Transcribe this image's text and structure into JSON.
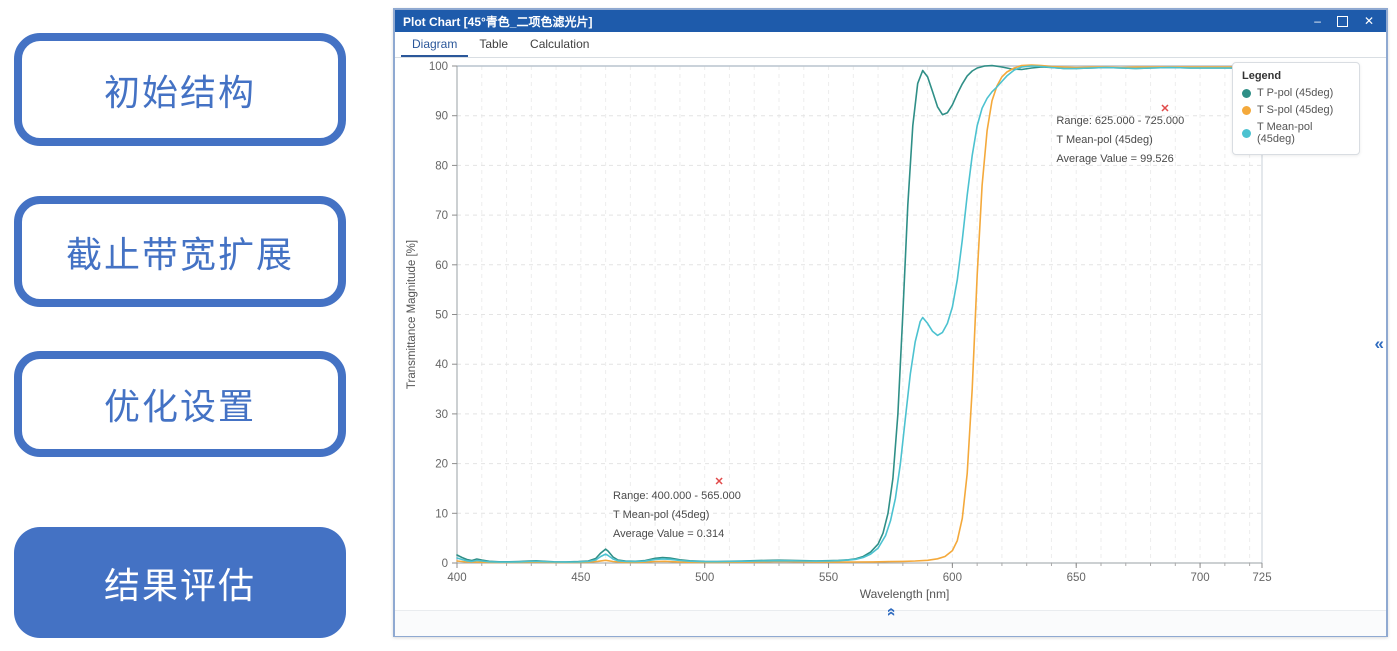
{
  "left_panel": {
    "accent_color": "#4472C4",
    "buttons": [
      {
        "label": "初始结构",
        "style": "outline"
      },
      {
        "label": "截止带宽扩展",
        "style": "outline"
      },
      {
        "label": "优化设置",
        "style": "outline"
      },
      {
        "label": "结果评估",
        "style": "filled"
      }
    ]
  },
  "window": {
    "title": "Plot Chart [45°青色_二项色滤光片]",
    "titlebar_color": "#1e5bab",
    "controls": {
      "minimize": "–",
      "close": "✕"
    },
    "tabs": [
      {
        "label": "Diagram",
        "active": true
      },
      {
        "label": "Table",
        "active": false
      },
      {
        "label": "Calculation",
        "active": false
      }
    ],
    "collapse_right_icon": "«",
    "collapse_up_icon": "«"
  },
  "chart_data": {
    "type": "line",
    "xlabel": "Wavelength [nm]",
    "ylabel": "Transmittance Magnitude [%]",
    "xlim": [
      400,
      725
    ],
    "ylim": [
      0,
      100
    ],
    "xticks": [
      400,
      450,
      500,
      550,
      600,
      650,
      700,
      725
    ],
    "yticks": [
      0,
      10,
      20,
      30,
      40,
      50,
      60,
      70,
      80,
      90,
      100
    ],
    "x_minor_step": 10,
    "grid": true,
    "legend": {
      "title": "Legend",
      "position": "top-right",
      "entries": [
        {
          "label": "T P-pol (45deg)",
          "color": "#2f8f87"
        },
        {
          "label": "T S-pol (45deg)",
          "color": "#f4a93b"
        },
        {
          "label": "T Mean-pol (45deg)",
          "color": "#4cc2d0"
        }
      ]
    },
    "series": [
      {
        "name": "T P-pol (45deg)",
        "color": "#2f8f87",
        "points": [
          [
            400,
            1.6
          ],
          [
            402,
            1.1
          ],
          [
            404,
            0.7
          ],
          [
            406,
            0.5
          ],
          [
            408,
            0.8
          ],
          [
            410,
            0.6
          ],
          [
            413,
            0.35
          ],
          [
            417,
            0.25
          ],
          [
            421,
            0.25
          ],
          [
            425,
            0.3
          ],
          [
            429,
            0.4
          ],
          [
            432,
            0.45
          ],
          [
            435,
            0.35
          ],
          [
            439,
            0.25
          ],
          [
            444,
            0.22
          ],
          [
            449,
            0.28
          ],
          [
            453,
            0.4
          ],
          [
            456,
            0.9
          ],
          [
            458,
            2.0
          ],
          [
            460,
            2.8
          ],
          [
            461,
            2.4
          ],
          [
            463,
            1.2
          ],
          [
            465,
            0.6
          ],
          [
            468,
            0.38
          ],
          [
            472,
            0.35
          ],
          [
            476,
            0.5
          ],
          [
            480,
            0.95
          ],
          [
            483,
            1.1
          ],
          [
            486,
            1.0
          ],
          [
            490,
            0.65
          ],
          [
            494,
            0.45
          ],
          [
            500,
            0.32
          ],
          [
            505,
            0.3
          ],
          [
            510,
            0.34
          ],
          [
            515,
            0.4
          ],
          [
            520,
            0.46
          ],
          [
            525,
            0.52
          ],
          [
            530,
            0.56
          ],
          [
            535,
            0.52
          ],
          [
            540,
            0.46
          ],
          [
            545,
            0.42
          ],
          [
            550,
            0.46
          ],
          [
            554,
            0.52
          ],
          [
            558,
            0.65
          ],
          [
            561,
            0.85
          ],
          [
            564,
            1.3
          ],
          [
            567,
            2.2
          ],
          [
            570,
            3.8
          ],
          [
            572,
            6
          ],
          [
            574,
            10
          ],
          [
            576,
            17
          ],
          [
            578,
            30
          ],
          [
            580,
            50
          ],
          [
            582,
            72
          ],
          [
            584,
            88
          ],
          [
            586,
            96.5
          ],
          [
            588,
            99.1
          ],
          [
            590,
            97.8
          ],
          [
            592,
            94.8
          ],
          [
            594,
            91.8
          ],
          [
            596,
            90.2
          ],
          [
            598,
            90.6
          ],
          [
            600,
            92.2
          ],
          [
            602,
            94.4
          ],
          [
            604,
            96.4
          ],
          [
            606,
            98
          ],
          [
            608,
            99
          ],
          [
            610,
            99.6
          ],
          [
            613,
            100
          ],
          [
            616,
            100.1
          ],
          [
            620,
            99.8
          ],
          [
            624,
            99.4
          ],
          [
            628,
            99.3
          ],
          [
            632,
            99.6
          ],
          [
            636,
            99.8
          ],
          [
            640,
            99.7
          ],
          [
            645,
            99.5
          ],
          [
            650,
            99.5
          ],
          [
            656,
            99.6
          ],
          [
            662,
            99.7
          ],
          [
            668,
            99.6
          ],
          [
            674,
            99.5
          ],
          [
            680,
            99.6
          ],
          [
            688,
            99.7
          ],
          [
            696,
            99.6
          ],
          [
            705,
            99.6
          ],
          [
            715,
            99.6
          ],
          [
            725,
            99.7
          ]
        ]
      },
      {
        "name": "T S-pol (45deg)",
        "color": "#f4a93b",
        "points": [
          [
            400,
            0.4
          ],
          [
            404,
            0.2
          ],
          [
            408,
            0.18
          ],
          [
            413,
            0.12
          ],
          [
            420,
            0.1
          ],
          [
            428,
            0.15
          ],
          [
            432,
            0.18
          ],
          [
            438,
            0.12
          ],
          [
            445,
            0.1
          ],
          [
            452,
            0.14
          ],
          [
            457,
            0.35
          ],
          [
            460,
            0.55
          ],
          [
            463,
            0.3
          ],
          [
            468,
            0.13
          ],
          [
            474,
            0.15
          ],
          [
            480,
            0.3
          ],
          [
            484,
            0.35
          ],
          [
            489,
            0.22
          ],
          [
            495,
            0.14
          ],
          [
            500,
            0.12
          ],
          [
            508,
            0.14
          ],
          [
            516,
            0.18
          ],
          [
            524,
            0.24
          ],
          [
            530,
            0.3
          ],
          [
            536,
            0.26
          ],
          [
            544,
            0.2
          ],
          [
            552,
            0.18
          ],
          [
            560,
            0.2
          ],
          [
            568,
            0.22
          ],
          [
            575,
            0.28
          ],
          [
            580,
            0.32
          ],
          [
            585,
            0.4
          ],
          [
            590,
            0.55
          ],
          [
            594,
            0.85
          ],
          [
            597,
            1.3
          ],
          [
            600,
            2.5
          ],
          [
            602,
            4.5
          ],
          [
            604,
            9
          ],
          [
            606,
            18
          ],
          [
            608,
            35
          ],
          [
            610,
            58
          ],
          [
            612,
            76
          ],
          [
            614,
            87
          ],
          [
            616,
            93
          ],
          [
            618,
            96
          ],
          [
            620,
            97.8
          ],
          [
            622,
            98.8
          ],
          [
            625,
            99.6
          ],
          [
            628,
            100.1
          ],
          [
            632,
            100.2
          ],
          [
            636,
            100.1
          ],
          [
            640,
            99.9
          ],
          [
            645,
            99.8
          ],
          [
            650,
            99.7
          ],
          [
            656,
            99.8
          ],
          [
            662,
            99.8
          ],
          [
            668,
            99.7
          ],
          [
            674,
            99.8
          ],
          [
            680,
            99.8
          ],
          [
            688,
            99.8
          ],
          [
            696,
            99.8
          ],
          [
            705,
            99.8
          ],
          [
            715,
            99.8
          ],
          [
            725,
            99.8
          ]
        ]
      },
      {
        "name": "T Mean-pol (45deg)",
        "color": "#4cc2d0",
        "points": [
          [
            400,
            1.0
          ],
          [
            402,
            0.7
          ],
          [
            404,
            0.45
          ],
          [
            406,
            0.32
          ],
          [
            408,
            0.5
          ],
          [
            410,
            0.4
          ],
          [
            413,
            0.25
          ],
          [
            417,
            0.18
          ],
          [
            421,
            0.18
          ],
          [
            425,
            0.22
          ],
          [
            429,
            0.3
          ],
          [
            432,
            0.34
          ],
          [
            435,
            0.27
          ],
          [
            439,
            0.2
          ],
          [
            444,
            0.18
          ],
          [
            449,
            0.22
          ],
          [
            453,
            0.3
          ],
          [
            456,
            0.6
          ],
          [
            458,
            1.3
          ],
          [
            460,
            1.8
          ],
          [
            461,
            1.5
          ],
          [
            463,
            0.8
          ],
          [
            465,
            0.45
          ],
          [
            468,
            0.3
          ],
          [
            472,
            0.28
          ],
          [
            476,
            0.38
          ],
          [
            480,
            0.7
          ],
          [
            483,
            0.82
          ],
          [
            486,
            0.75
          ],
          [
            490,
            0.5
          ],
          [
            494,
            0.36
          ],
          [
            500,
            0.26
          ],
          [
            505,
            0.26
          ],
          [
            510,
            0.3
          ],
          [
            515,
            0.34
          ],
          [
            520,
            0.38
          ],
          [
            525,
            0.42
          ],
          [
            530,
            0.46
          ],
          [
            535,
            0.44
          ],
          [
            540,
            0.4
          ],
          [
            545,
            0.38
          ],
          [
            550,
            0.4
          ],
          [
            554,
            0.46
          ],
          [
            558,
            0.58
          ],
          [
            561,
            0.75
          ],
          [
            564,
            1.1
          ],
          [
            567,
            1.8
          ],
          [
            570,
            3.0
          ],
          [
            573,
            5.5
          ],
          [
            575,
            8.5
          ],
          [
            577,
            13
          ],
          [
            579,
            20
          ],
          [
            581,
            29
          ],
          [
            583,
            38
          ],
          [
            585,
            44.5
          ],
          [
            587,
            48.6
          ],
          [
            588,
            49.4
          ],
          [
            590,
            48.2
          ],
          [
            592,
            46.6
          ],
          [
            594,
            45.8
          ],
          [
            596,
            46.4
          ],
          [
            598,
            48.2
          ],
          [
            600,
            51.5
          ],
          [
            602,
            57
          ],
          [
            604,
            65
          ],
          [
            606,
            74
          ],
          [
            608,
            82
          ],
          [
            610,
            88
          ],
          [
            612,
            91.5
          ],
          [
            614,
            93.5
          ],
          [
            616,
            94.8
          ],
          [
            618,
            95.8
          ],
          [
            620,
            96.9
          ],
          [
            622,
            98
          ],
          [
            625,
            99.2
          ],
          [
            628,
            99.8
          ],
          [
            632,
            100
          ],
          [
            636,
            99.9
          ],
          [
            640,
            99.7
          ],
          [
            645,
            99.5
          ],
          [
            650,
            99.5
          ],
          [
            656,
            99.6
          ],
          [
            662,
            99.7
          ],
          [
            668,
            99.6
          ],
          [
            674,
            99.5
          ],
          [
            680,
            99.6
          ],
          [
            688,
            99.7
          ],
          [
            696,
            99.6
          ],
          [
            705,
            99.6
          ],
          [
            715,
            99.6
          ],
          [
            725,
            99.7
          ]
        ]
      }
    ],
    "annotations": [
      {
        "marker": "✕",
        "marker_color": "#e14b4b",
        "anchor_x": 686,
        "anchor_y": 91.3,
        "text_x": 642,
        "text_y": 90.7,
        "lines": [
          "Range: 625.000 - 725.000",
          "T Mean-pol (45deg)",
          "Average Value = 99.526"
        ]
      },
      {
        "marker": "✕",
        "marker_color": "#e14b4b",
        "anchor_x": 506,
        "anchor_y": 16.3,
        "text_x": 463,
        "text_y": 15.3,
        "lines": [
          "Range: 400.000 - 565.000",
          "T Mean-pol (45deg)",
          "Average Value = 0.314"
        ]
      }
    ]
  }
}
